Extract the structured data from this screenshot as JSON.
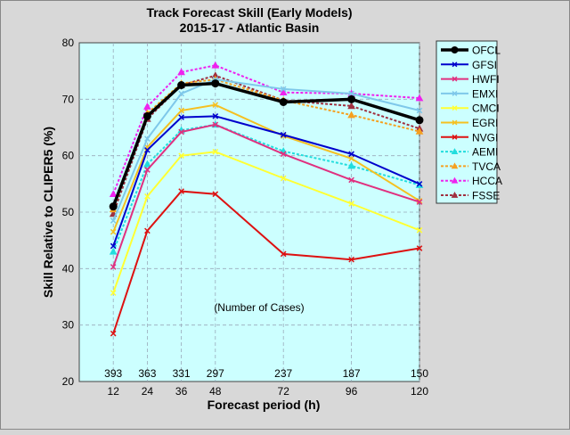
{
  "chart_data": {
    "type": "line",
    "title": "Track Forecast Skill (Early Models)",
    "subtitle": "2015-17 - Atlantic Basin",
    "xlabel": "Forecast period (h)",
    "ylabel": "Skill Relative to CLIPER5 (%)",
    "x": [
      12,
      24,
      36,
      48,
      72,
      96,
      120
    ],
    "xlim": [
      0,
      120
    ],
    "ylim": [
      20,
      80
    ],
    "yticks": [
      20,
      30,
      40,
      50,
      60,
      70,
      80
    ],
    "grid": true,
    "legend_placement": "outside-right",
    "annotation": "(Number of Cases)",
    "cases": [
      "393",
      "363",
      "331",
      "297",
      "237",
      "187",
      "150"
    ],
    "plot_background": "#ccffff",
    "series": [
      {
        "name": "OFCL",
        "color": "#000000",
        "dash": false,
        "marker": "circle",
        "values": [
          51,
          67,
          72.5,
          72.8,
          69.5,
          70,
          66.3
        ]
      },
      {
        "name": "GFSI",
        "color": "#0000cc",
        "dash": false,
        "marker": "x",
        "values": [
          44,
          61,
          66.8,
          67,
          63.7,
          60.3,
          55
        ]
      },
      {
        "name": "HWFI",
        "color": "#e0307f",
        "dash": false,
        "marker": "x",
        "values": [
          40.3,
          57.5,
          64.2,
          65.5,
          60.3,
          55.7,
          51.8
        ]
      },
      {
        "name": "EMXI",
        "color": "#7ec8ea",
        "dash": false,
        "marker": "x",
        "values": [
          48.5,
          63,
          71,
          73.5,
          71.8,
          71,
          68
        ]
      },
      {
        "name": "CMCI",
        "color": "#ffff33",
        "dash": false,
        "marker": "x",
        "values": [
          35.7,
          52.8,
          60,
          60.7,
          56,
          51.5,
          46.8
        ]
      },
      {
        "name": "EGRI",
        "color": "#f5c020",
        "dash": false,
        "marker": "x",
        "values": [
          46.5,
          61.5,
          68,
          69,
          63.5,
          59.5,
          52
        ]
      },
      {
        "name": "NVGI",
        "color": "#dd1111",
        "dash": false,
        "marker": "x",
        "values": [
          28.5,
          46.7,
          53.7,
          53.2,
          42.6,
          41.6,
          43.6
        ]
      },
      {
        "name": "AEMI",
        "color": "#22dddd",
        "dash": true,
        "marker": "triangle",
        "values": [
          43,
          58.5,
          64.5,
          65.5,
          60.8,
          58.2,
          54.8
        ]
      },
      {
        "name": "TVCA",
        "color": "#f5a020",
        "dash": true,
        "marker": "triangle",
        "values": [
          50.5,
          67.5,
          72.8,
          73.5,
          69.8,
          67.2,
          64.3
        ]
      },
      {
        "name": "HCCA",
        "color": "#ee22ee",
        "dash": true,
        "marker": "triangle",
        "values": [
          53.2,
          68.7,
          74.8,
          76,
          71.2,
          71,
          70.2
        ]
      },
      {
        "name": "FSSE",
        "color": "#a03040",
        "dash": true,
        "marker": "triangle",
        "values": [
          49.7,
          66.5,
          72.5,
          74.2,
          69.8,
          68.8,
          64.8
        ]
      }
    ]
  }
}
